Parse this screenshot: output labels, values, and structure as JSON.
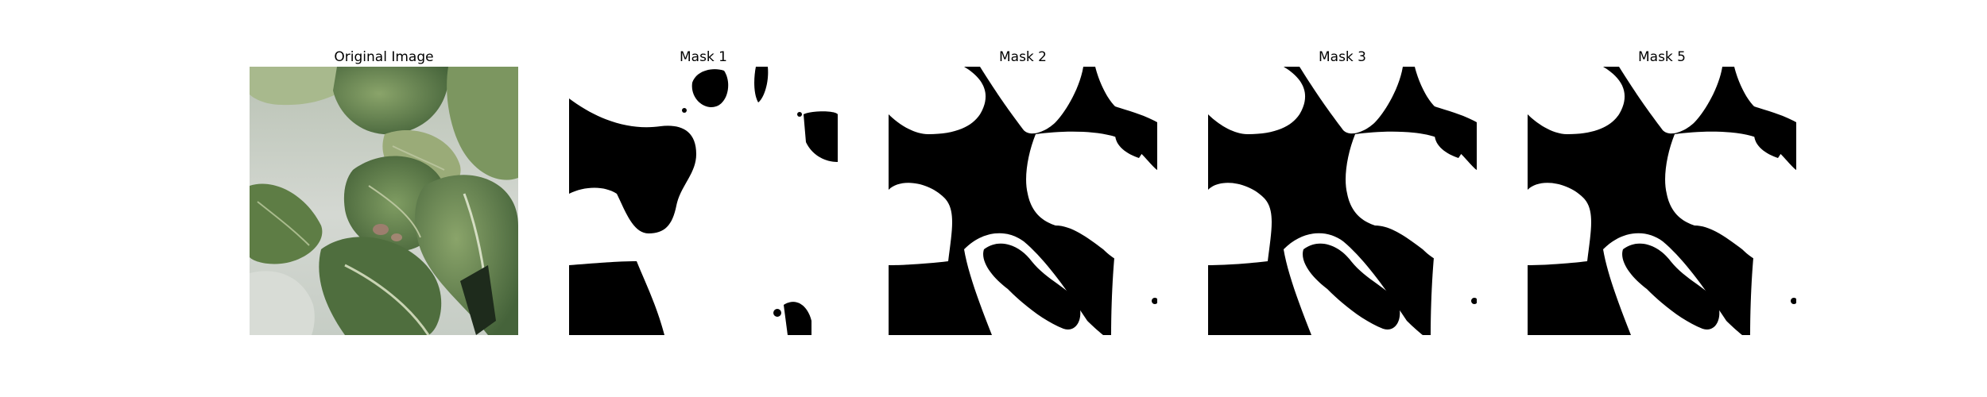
{
  "panels": [
    {
      "title": "Original Image",
      "kind": "photo"
    },
    {
      "title": "Mask 1",
      "kind": "mask"
    },
    {
      "title": "Mask 2",
      "kind": "mask"
    },
    {
      "title": "Mask 3",
      "kind": "mask"
    },
    {
      "title": "Mask 5",
      "kind": "mask"
    }
  ],
  "colors": {
    "mask_foreground": "#ffffff",
    "mask_background": "#000000",
    "leaf_dark": "#4d6b3b",
    "leaf_mid": "#6d8c52",
    "leaf_light": "#9fb07e",
    "background_gray": "#c9cdc7"
  }
}
